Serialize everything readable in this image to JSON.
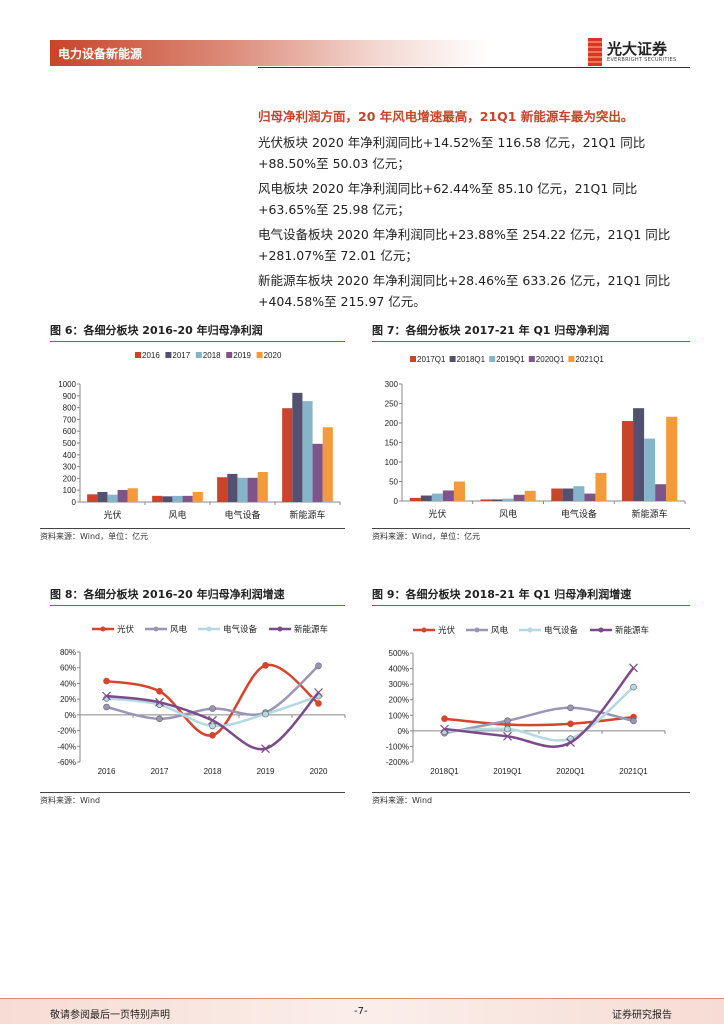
{
  "header": {
    "section": "电力设备新能源",
    "logo_cn": "光大证券",
    "logo_en": "EVERBRIGHT SECURITIES"
  },
  "text": {
    "headline": "归母净利润方面，20 年风电增速最高，21Q1 新能源车最为突出。",
    "paragraphs": [
      "光伏板块 2020 年净利润同比+14.52%至 116.58 亿元，21Q1 同比+88.50%至 50.03 亿元；",
      "风电板块 2020 年净利润同比+62.44%至 85.10 亿元，21Q1 同比+63.65%至 25.98 亿元；",
      "电气设备板块 2020 年净利润同比+23.88%至 254.22 亿元，21Q1 同比+281.07%至 72.01 亿元；",
      "新能源车板块 2020 年净利润同比+28.46%至 633.26 亿元，21Q1 同比+404.58%至 215.97 亿元。"
    ]
  },
  "colors": {
    "accent": "#c8442a",
    "series": [
      "#c8442a",
      "#545070",
      "#86b4c8",
      "#7f5488",
      "#f39a3c"
    ],
    "lines": [
      "#d4452c",
      "#9a95b5",
      "#b5d8e2",
      "#7b4a88"
    ]
  },
  "chart_data": [
    {
      "type": "bar",
      "title": "图 6：各细分板块 2016-20 年归母净利润",
      "source": "资料来源：Wind，单位：亿元",
      "categories": [
        "光伏",
        "风电",
        "电气设备",
        "新能源车"
      ],
      "ylim": [
        0,
        1000
      ],
      "yticks": [
        0,
        100,
        200,
        300,
        400,
        500,
        600,
        700,
        800,
        900,
        1000
      ],
      "legend": "top",
      "series": [
        {
          "name": "2016",
          "values": [
            65,
            52,
            210,
            795
          ]
        },
        {
          "name": "2017",
          "values": [
            85,
            48,
            238,
            925
          ]
        },
        {
          "name": "2018",
          "values": [
            62,
            52,
            205,
            855
          ]
        },
        {
          "name": "2019",
          "values": [
            102,
            52,
            205,
            493
          ]
        },
        {
          "name": "2020",
          "values": [
            116.58,
            85.1,
            254.22,
            633.26
          ]
        }
      ]
    },
    {
      "type": "bar",
      "title": "图 7：各细分板块 2017-21 年 Q1 归母净利润",
      "source": "资料来源：Wind，单位：亿元",
      "categories": [
        "光伏",
        "风电",
        "电气设备",
        "新能源车"
      ],
      "ylim": [
        0,
        300
      ],
      "yticks": [
        0,
        50,
        100,
        150,
        200,
        250,
        300
      ],
      "legend": "top",
      "series": [
        {
          "name": "2017Q1",
          "values": [
            8,
            4,
            32,
            205
          ]
        },
        {
          "name": "2018Q1",
          "values": [
            14,
            4,
            32,
            238
          ]
        },
        {
          "name": "2019Q1",
          "values": [
            19,
            6,
            38,
            160
          ]
        },
        {
          "name": "2020Q1",
          "values": [
            27,
            16,
            19,
            43
          ]
        },
        {
          "name": "2021Q1",
          "values": [
            50.03,
            25.98,
            72.01,
            215.97
          ]
        }
      ]
    },
    {
      "type": "line",
      "title": "图 8：各细分板块 2016-20 年归母净利润增速",
      "source": "资料来源：Wind",
      "categories": [
        "2016",
        "2017",
        "2018",
        "2019",
        "2020"
      ],
      "ylim": [
        -60,
        80
      ],
      "yticks": [
        -60,
        -40,
        -20,
        0,
        20,
        40,
        60,
        80
      ],
      "unit": "%",
      "legend": "top",
      "series": [
        {
          "name": "光伏",
          "values": [
            43,
            30,
            -26,
            63,
            14.52
          ]
        },
        {
          "name": "风电",
          "values": [
            10,
            -5,
            8,
            3,
            62.44
          ]
        },
        {
          "name": "电气设备",
          "values": [
            21,
            13,
            -14,
            1,
            23.88
          ]
        },
        {
          "name": "新能源车",
          "values": [
            24,
            16,
            -7,
            -43,
            28.46
          ]
        }
      ]
    },
    {
      "type": "line",
      "title": "图 9：各细分板块 2018-21 年 Q1 归母净利润增速",
      "source": "资料来源：Wind",
      "categories": [
        "2018Q1",
        "2019Q1",
        "2020Q1",
        "2021Q1"
      ],
      "ylim": [
        -200,
        500
      ],
      "yticks": [
        -200,
        -100,
        0,
        100,
        200,
        300,
        400,
        500
      ],
      "unit": "%",
      "legend": "top",
      "series": [
        {
          "name": "光伏",
          "values": [
            78,
            40,
            45,
            88.5
          ]
        },
        {
          "name": "风电",
          "values": [
            -15,
            65,
            148,
            63.65
          ]
        },
        {
          "name": "电气设备",
          "values": [
            -5,
            12,
            -50,
            281.07
          ]
        },
        {
          "name": "新能源车",
          "values": [
            12,
            -35,
            -75,
            404.58
          ]
        }
      ]
    }
  ],
  "footer": {
    "left": "敬请参阅最后一页特别声明",
    "page": "-7-",
    "right": "证券研究报告"
  }
}
